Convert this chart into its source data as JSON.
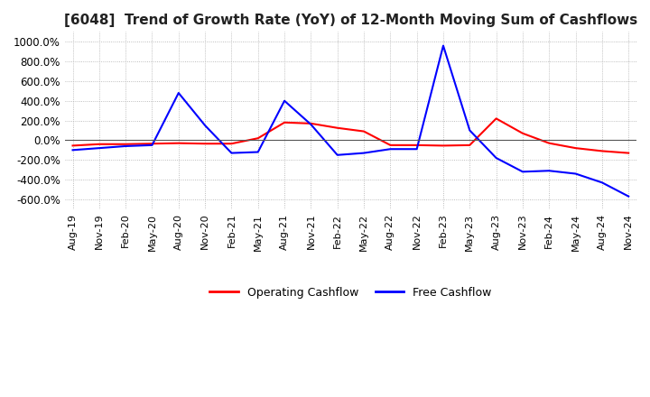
{
  "title": "[6048]  Trend of Growth Rate (YoY) of 12-Month Moving Sum of Cashflows",
  "title_fontsize": 11,
  "ylim": [
    -700,
    1100
  ],
  "yticks": [
    -600,
    -400,
    -200,
    0,
    200,
    400,
    600,
    800,
    1000
  ],
  "ytick_labels": [
    "-600.0%",
    "-400.0%",
    "-200.0%",
    "0.0%",
    "200.0%",
    "400.0%",
    "600.0%",
    "800.0%",
    "1000.0%"
  ],
  "background_color": "#ffffff",
  "grid_color": "#aaaaaa",
  "legend_labels": [
    "Operating Cashflow",
    "Free Cashflow"
  ],
  "legend_colors": [
    "#ff0000",
    "#0000ff"
  ],
  "x_labels": [
    "Aug-19",
    "Nov-19",
    "Feb-20",
    "May-20",
    "Aug-20",
    "Nov-20",
    "Feb-21",
    "May-21",
    "Aug-21",
    "Nov-21",
    "Feb-22",
    "May-22",
    "Aug-22",
    "Nov-22",
    "Feb-23",
    "May-23",
    "Aug-23",
    "Nov-23",
    "Feb-24",
    "May-24",
    "Aug-24",
    "Nov-24"
  ],
  "operating_cashflow": [
    -55,
    -40,
    -40,
    -35,
    -30,
    -35,
    -35,
    20,
    180,
    170,
    125,
    90,
    -50,
    -50,
    -55,
    -50,
    220,
    70,
    -30,
    -80,
    -110,
    -130
  ],
  "free_cashflow": [
    -100,
    -80,
    -60,
    -50,
    480,
    150,
    -130,
    -120,
    400,
    160,
    -150,
    -130,
    -90,
    -90,
    960,
    100,
    -180,
    -320,
    -310,
    -340,
    -430,
    -570
  ]
}
